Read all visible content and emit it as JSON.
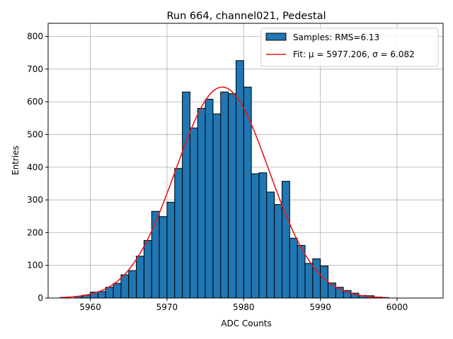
{
  "chart_data": {
    "type": "bar",
    "title": "Run 664, channel021, Pedestal",
    "xlabel": "ADC Counts",
    "ylabel": "Entries",
    "xlim": [
      5954.5,
      6006.0
    ],
    "ylim": [
      0,
      840
    ],
    "xticks": [
      5960,
      5970,
      5980,
      5990,
      6000
    ],
    "yticks": [
      0,
      100,
      200,
      300,
      400,
      500,
      600,
      700,
      800
    ],
    "grid": true,
    "legend_position": "top-right",
    "bin_width": 1,
    "bins": [
      {
        "x": 5958,
        "value": 5
      },
      {
        "x": 5959,
        "value": 9
      },
      {
        "x": 5960,
        "value": 18
      },
      {
        "x": 5961,
        "value": 20
      },
      {
        "x": 5962,
        "value": 33
      },
      {
        "x": 5963,
        "value": 45
      },
      {
        "x": 5964,
        "value": 71
      },
      {
        "x": 5965,
        "value": 84
      },
      {
        "x": 5966,
        "value": 128
      },
      {
        "x": 5967,
        "value": 176
      },
      {
        "x": 5968,
        "value": 265
      },
      {
        "x": 5969,
        "value": 249
      },
      {
        "x": 5970,
        "value": 293
      },
      {
        "x": 5971,
        "value": 396
      },
      {
        "x": 5972,
        "value": 630
      },
      {
        "x": 5973,
        "value": 520
      },
      {
        "x": 5974,
        "value": 580
      },
      {
        "x": 5975,
        "value": 608
      },
      {
        "x": 5976,
        "value": 563
      },
      {
        "x": 5977,
        "value": 630
      },
      {
        "x": 5978,
        "value": 625
      },
      {
        "x": 5979,
        "value": 726
      },
      {
        "x": 5980,
        "value": 645
      },
      {
        "x": 5981,
        "value": 380
      },
      {
        "x": 5982,
        "value": 383
      },
      {
        "x": 5983,
        "value": 324
      },
      {
        "x": 5984,
        "value": 286
      },
      {
        "x": 5985,
        "value": 357
      },
      {
        "x": 5986,
        "value": 183
      },
      {
        "x": 5987,
        "value": 161
      },
      {
        "x": 5988,
        "value": 106
      },
      {
        "x": 5989,
        "value": 120
      },
      {
        "x": 5990,
        "value": 98
      },
      {
        "x": 5991,
        "value": 46
      },
      {
        "x": 5992,
        "value": 33
      },
      {
        "x": 5993,
        "value": 23
      },
      {
        "x": 5994,
        "value": 15
      },
      {
        "x": 5995,
        "value": 8
      },
      {
        "x": 5996,
        "value": 7
      },
      {
        "x": 5997,
        "value": 3
      }
    ],
    "fit": {
      "mu": 5977.206,
      "sigma": 6.082,
      "amplitude": 645,
      "x_range": [
        5956,
        5999
      ]
    },
    "series": [
      {
        "name": "Samples: RMS=6.13",
        "kind": "histogram",
        "color": "#1f77b4"
      },
      {
        "name": "Fit: μ = 5977.206, σ = 6.082",
        "kind": "line",
        "color": "#e41a1c"
      }
    ]
  }
}
